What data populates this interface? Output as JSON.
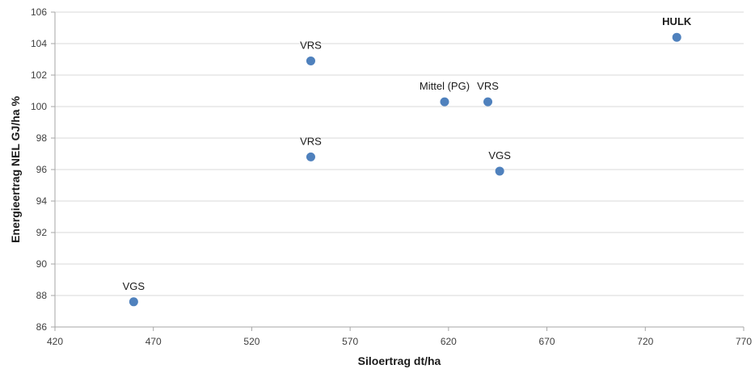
{
  "chart_data": {
    "type": "scatter",
    "title": "",
    "xlabel": "Siloertrag dt/ha",
    "ylabel": "Energieertrag NEL GJ/ha %",
    "xlim": [
      420,
      770
    ],
    "ylim": [
      86,
      106
    ],
    "x_ticks": [
      420,
      470,
      520,
      570,
      620,
      670,
      720,
      770
    ],
    "y_ticks": [
      86,
      88,
      90,
      92,
      94,
      96,
      98,
      100,
      102,
      104,
      106
    ],
    "grid": {
      "horizontal": true,
      "vertical": false
    },
    "legend": "none",
    "marker_color": "#4f81bd",
    "points": [
      {
        "x": 460,
        "y": 87.6,
        "label": "VGS",
        "bold": false
      },
      {
        "x": 550,
        "y": 102.9,
        "label": "VRS",
        "bold": false
      },
      {
        "x": 550,
        "y": 96.8,
        "label": "VRS",
        "bold": false
      },
      {
        "x": 618,
        "y": 100.3,
        "label": "Mittel (PG)",
        "bold": false
      },
      {
        "x": 640,
        "y": 100.3,
        "label": "VRS",
        "bold": false
      },
      {
        "x": 646,
        "y": 95.9,
        "label": "VGS",
        "bold": false
      },
      {
        "x": 736,
        "y": 104.4,
        "label": "HULK",
        "bold": true
      }
    ]
  }
}
